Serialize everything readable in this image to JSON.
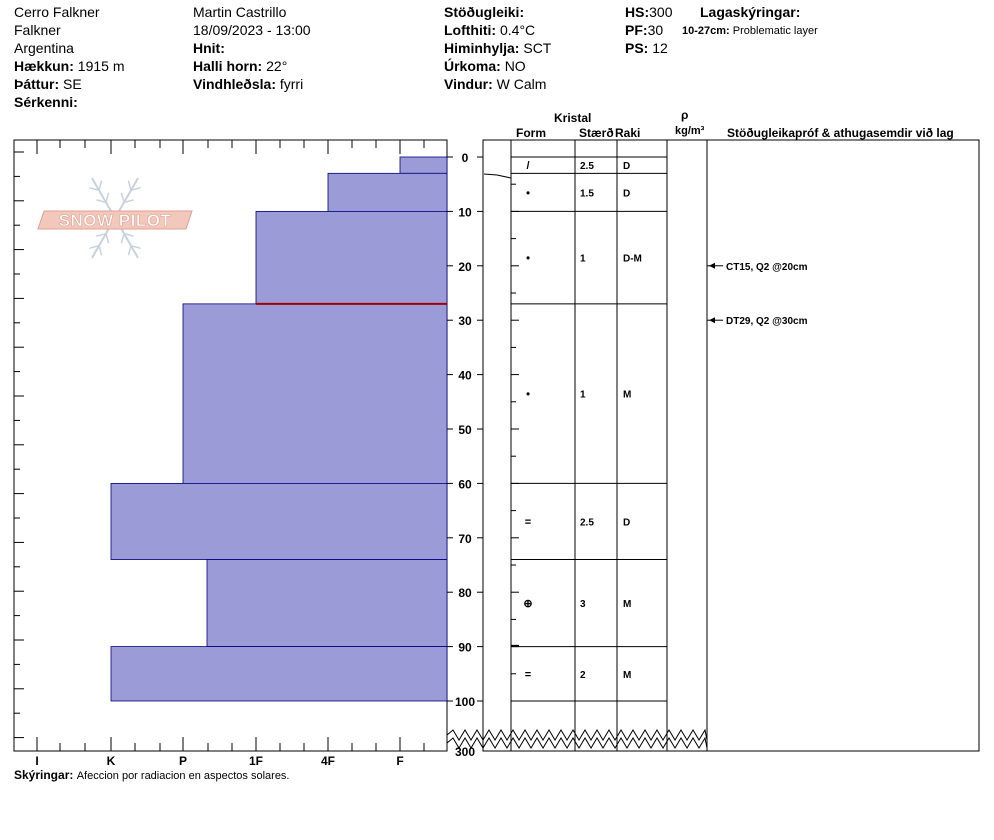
{
  "header": {
    "col1": {
      "location": "Cerro Falkner",
      "region": "Falkner",
      "country": "Argentina",
      "elevation_label": "Hækkun:",
      "elevation_value": "1915 m",
      "aspect_label": "Þáttur:",
      "aspect_value": "SE",
      "features_label": "Sérkenni:"
    },
    "col2": {
      "observer": "Martin Castrillo",
      "datetime": "18/09/2023 - 13:00",
      "coords_label": "Hnit:",
      "slope_label": "Halli horn:",
      "slope_value": "22°",
      "wind_loading_label": "Vindhleðsla:",
      "wind_loading_value": "fyrri"
    },
    "col3": {
      "stability_label": "Stöðugleiki:",
      "air_temp_label": "Lofthiti:",
      "air_temp_value": "0.4°C",
      "sky_label": "Himinhylja:",
      "sky_value": "SCT",
      "precip_label": "Úrkoma:",
      "precip_value": "NO",
      "wind_label": "Vindur:",
      "wind_value": "W Calm"
    },
    "col4": {
      "hs_label": "HS:",
      "hs_value": "300",
      "pf_label": "PF:",
      "pf_value": "30",
      "ps_label": "PS:",
      "ps_value": "12"
    },
    "legend": {
      "title": "Lagaskýringar:",
      "item_range": "10-27cm:",
      "item_text": "Problematic layer"
    }
  },
  "logo_text": "SNOW PILOT",
  "table_headers": {
    "crystal": "Kristal",
    "form": "Form",
    "size": "Stærð",
    "moisture": "Raki",
    "density_symbol": "ρ",
    "density_unit": "kg/m³",
    "tests": "Stöðugleikapróf & athugasemdir við lag"
  },
  "footer": {
    "notes_label": "Skýringar:",
    "notes_text": "Afeccion por radiacion en aspectos solares."
  },
  "colors": {
    "layer_fill": "#9b9bd7",
    "layer_edge": "#000080",
    "problem_line": "#a00000",
    "logo": "#e8a090"
  },
  "chart_data": {
    "type": "snow-profile",
    "depth_axis": {
      "unit": "cm",
      "ticks": [
        0,
        10,
        20,
        30,
        40,
        50,
        60,
        70,
        80,
        90,
        100
      ],
      "bottom_label": "300"
    },
    "hardness_axis": {
      "ticks": [
        "I",
        "K",
        "P",
        "1F",
        "4F",
        "F"
      ]
    },
    "layers": [
      {
        "top": 0,
        "bottom": 3,
        "hardness": "F",
        "form": "/",
        "size": "2.5",
        "moisture": "D"
      },
      {
        "top": 3,
        "bottom": 10,
        "hardness": "4F",
        "form": "•",
        "size": "1.5",
        "moisture": "D"
      },
      {
        "top": 10,
        "bottom": 27,
        "hardness": "1F",
        "form": "•",
        "size": "1",
        "moisture": "D-M"
      },
      {
        "top": 27,
        "bottom": 60,
        "hardness": "P",
        "form": "•",
        "size": "1",
        "moisture": "M"
      },
      {
        "top": 60,
        "bottom": 74,
        "hardness": "K",
        "form": "=",
        "size": "2.5",
        "moisture": "D"
      },
      {
        "top": 74,
        "bottom": 90,
        "hardness": "P-",
        "form": "⊕",
        "size": "3",
        "moisture": "M"
      },
      {
        "top": 90,
        "bottom": 100,
        "hardness": "K",
        "form": "=",
        "size": "2",
        "moisture": "M"
      }
    ],
    "problematic_layer_depth": 27,
    "tests": [
      {
        "depth": 20,
        "text": "CT15, Q2 @20cm"
      },
      {
        "depth": 30,
        "text": "DT29, Q2 @30cm"
      }
    ]
  }
}
